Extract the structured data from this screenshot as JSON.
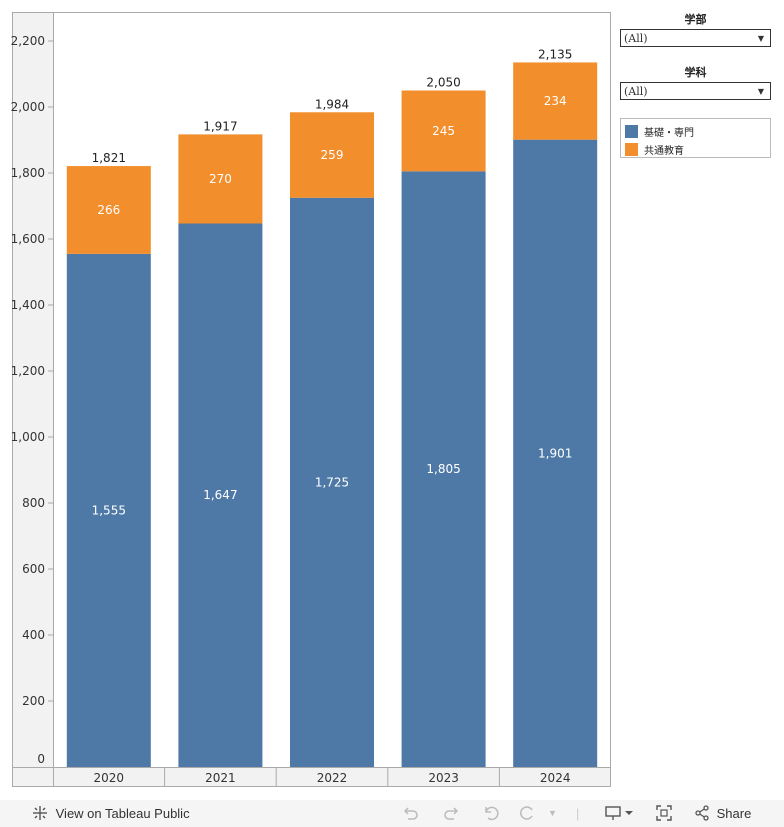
{
  "chart_data": {
    "type": "bar",
    "stacked": true,
    "categories": [
      "2020",
      "2021",
      "2022",
      "2023",
      "2024"
    ],
    "series": [
      {
        "name": "基礎・専門",
        "values": [
          1555,
          1647,
          1725,
          1805,
          1901
        ],
        "color": "#4e79a7"
      },
      {
        "name": "共通教育",
        "values": [
          266,
          270,
          259,
          245,
          234
        ],
        "color": "#f28e2b"
      }
    ],
    "totals": [
      "1,821",
      "1,917",
      "1,984",
      "2,050",
      "2,135"
    ],
    "segment_labels": [
      [
        "1,555",
        "1,647",
        "1,725",
        "1,805",
        "1,901"
      ],
      [
        "266",
        "270",
        "259",
        "245",
        "234"
      ]
    ],
    "y_ticks": [
      0,
      200,
      400,
      600,
      800,
      1000,
      1200,
      1400,
      1600,
      1800,
      2000,
      2200
    ],
    "y_tick_labels": [
      "0",
      "200",
      "400",
      "600",
      "800",
      "1,000",
      "1,200",
      "1,400",
      "1,600",
      "1,800",
      "2,000",
      "2,200"
    ],
    "ylim": [
      0,
      2200
    ],
    "grid": false,
    "legend_position": "right"
  },
  "filters": [
    {
      "title": "学部",
      "value": "(All)"
    },
    {
      "title": "学科",
      "value": "(All)"
    }
  ],
  "legend": {
    "items": [
      {
        "label": "基礎・専門",
        "color": "#4e79a7"
      },
      {
        "label": "共通教育",
        "color": "#f28e2b"
      }
    ]
  },
  "toolbar": {
    "view_label": "View on Tableau Public",
    "share_label": "Share"
  },
  "icons": [
    "tableau-icon",
    "undo-icon",
    "redo-icon",
    "revert-icon",
    "refresh-icon",
    "download-icon",
    "fullscreen-icon",
    "share-icon"
  ]
}
